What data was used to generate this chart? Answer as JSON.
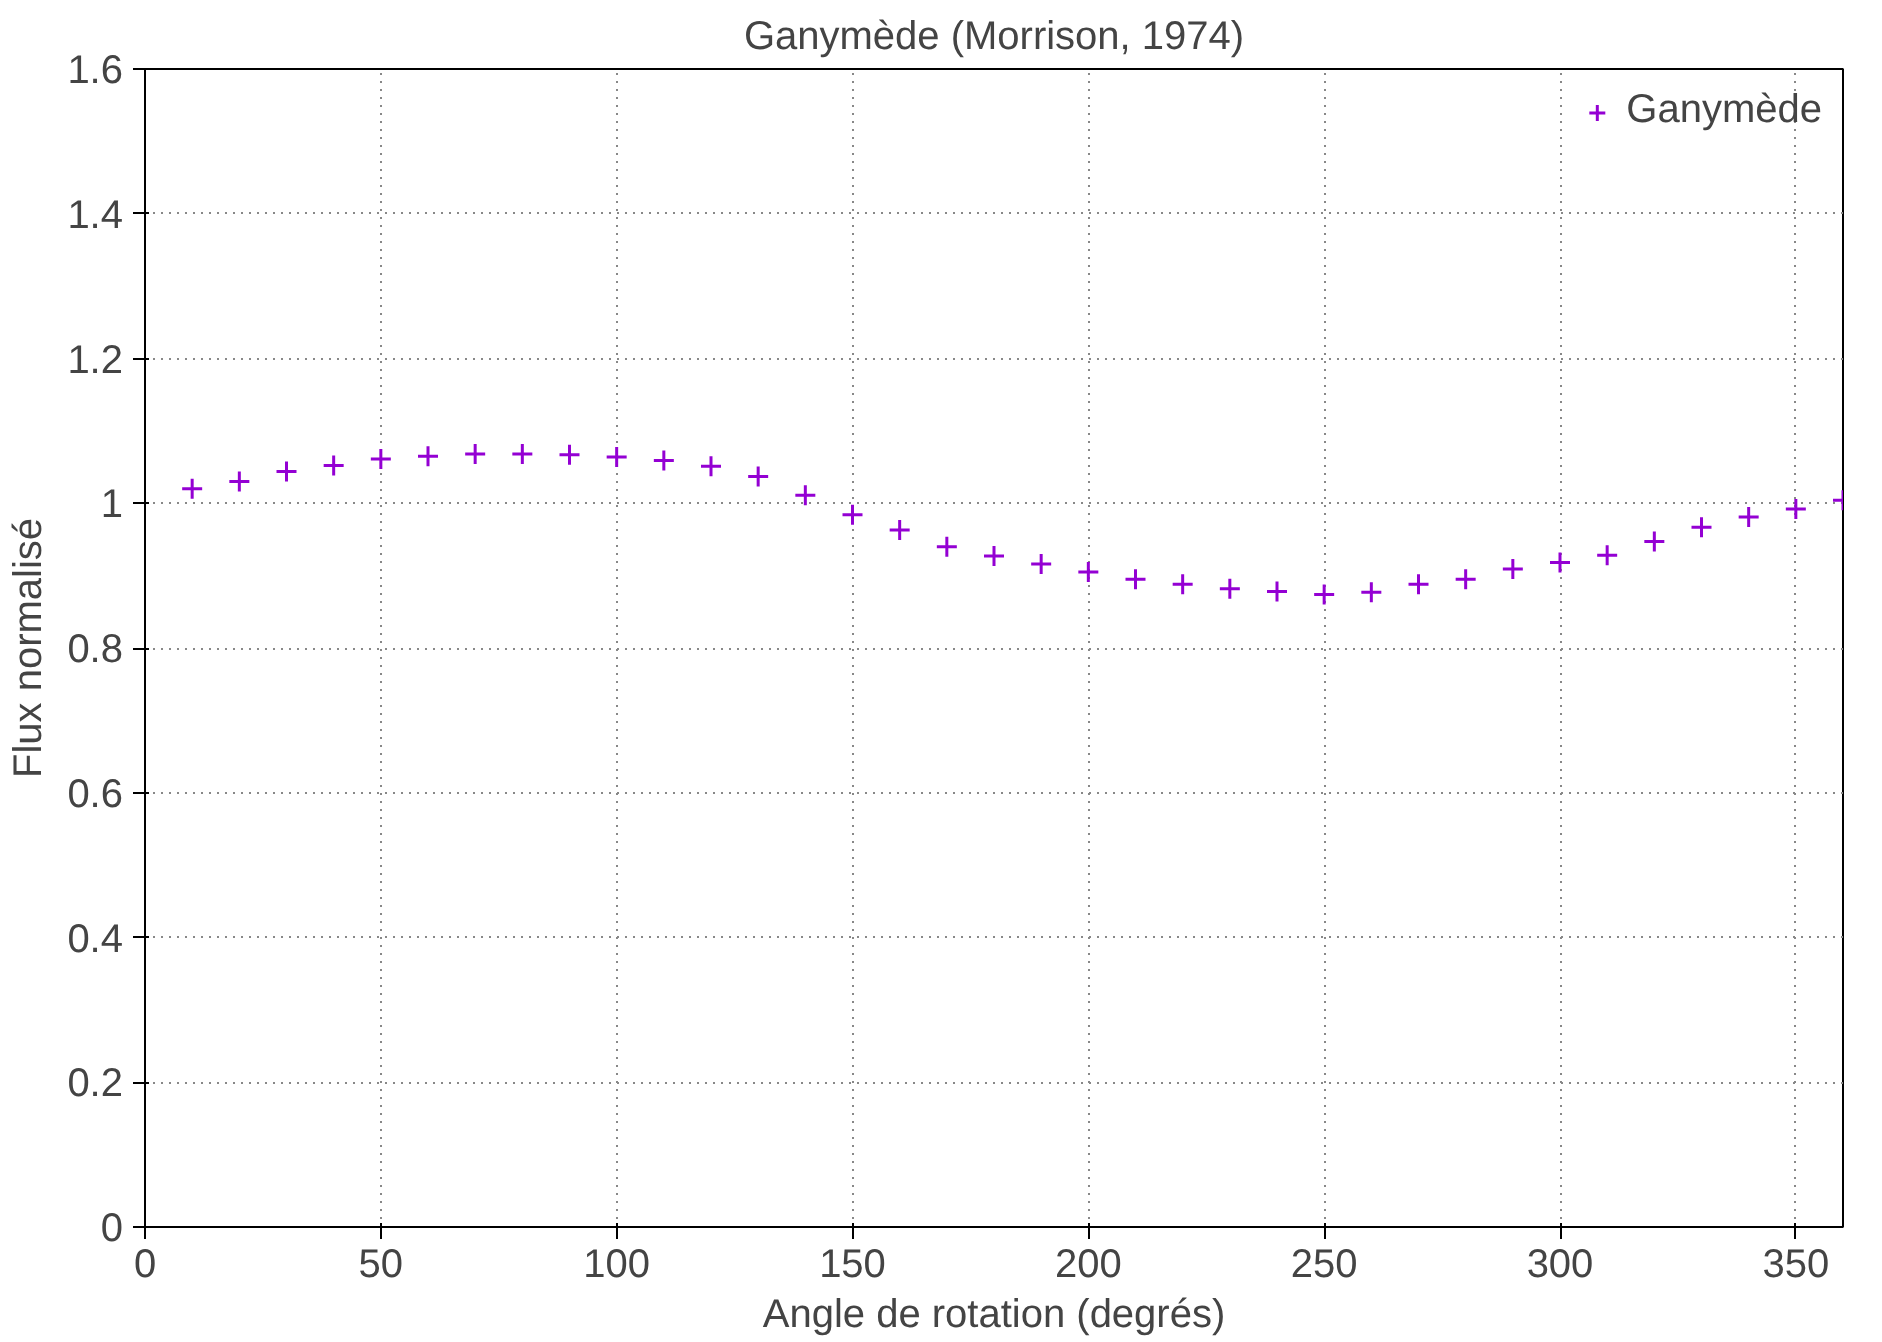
{
  "chart_data": {
    "type": "scatter",
    "title": "Ganymède (Morrison, 1974)",
    "xlabel": "Angle de rotation (degrés)",
    "ylabel": "Flux normalisé",
    "x": [
      10,
      20,
      30,
      40,
      50,
      60,
      70,
      80,
      90,
      100,
      110,
      120,
      130,
      140,
      150,
      160,
      170,
      180,
      190,
      200,
      210,
      220,
      230,
      240,
      250,
      260,
      270,
      280,
      290,
      300,
      310,
      320,
      330,
      340,
      350,
      360
    ],
    "series": [
      {
        "name": "Ganymède",
        "color": "#9400d3",
        "values": [
          1.02,
          1.03,
          1.044,
          1.052,
          1.061,
          1.065,
          1.068,
          1.068,
          1.067,
          1.064,
          1.059,
          1.051,
          1.037,
          1.011,
          0.984,
          0.963,
          0.94,
          0.927,
          0.916,
          0.905,
          0.895,
          0.888,
          0.882,
          0.878,
          0.874,
          0.877,
          0.888,
          0.895,
          0.909,
          0.918,
          0.928,
          0.947,
          0.967,
          0.981,
          0.992,
          1.004
        ]
      }
    ],
    "xlim": [
      0,
      360
    ],
    "ylim": [
      0,
      1.6
    ],
    "xticks": [
      0,
      50,
      100,
      150,
      200,
      250,
      300,
      350
    ],
    "yticks": [
      0,
      0.2,
      0.4,
      0.6,
      0.8,
      1,
      1.2,
      1.4,
      1.6
    ],
    "grid": true,
    "legend": "top right",
    "marker": "cross"
  }
}
